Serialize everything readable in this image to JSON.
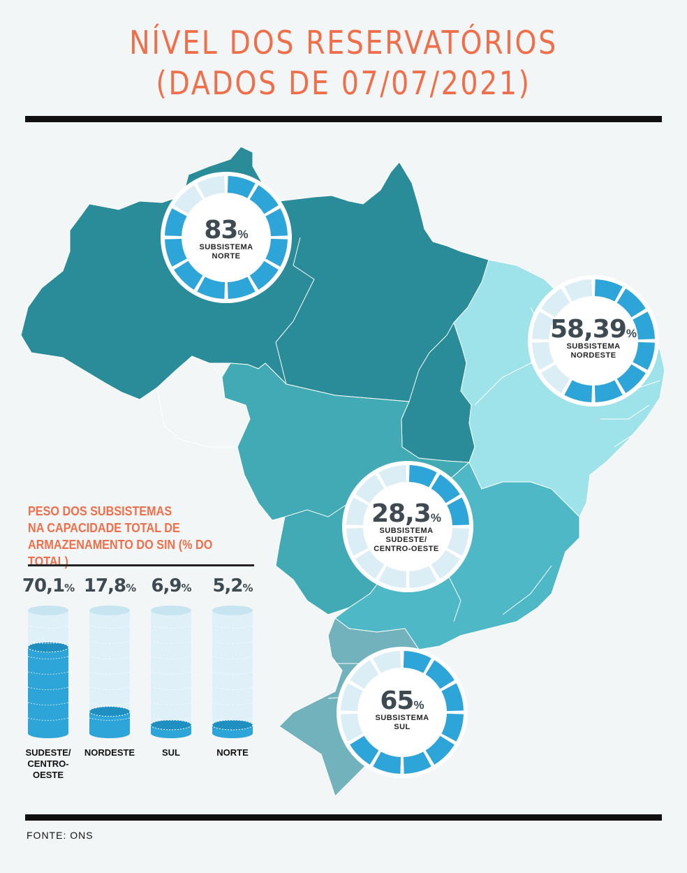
{
  "title": {
    "line1": "NÍVEL DOS RESERVATÓRIOS",
    "line2": "(DADOS DE 07/07/2021)"
  },
  "colors": {
    "accent": "#ef6f4a",
    "norte": "#2b8c99",
    "sudeste_centro_oeste": "#42aab4",
    "nordeste": "#9ee2ea",
    "sul": "#72b2bd",
    "minas": "#4eb8c6",
    "donut_fill": "#2ea5d8",
    "donut_empty": "#dceef5"
  },
  "reservoirs": [
    {
      "id": "norte",
      "value": 83,
      "value_label": "83",
      "unit": "%",
      "line1": "SUBSISTEMA",
      "line2": "NORTE",
      "line3": ""
    },
    {
      "id": "nordeste",
      "value": 58.39,
      "value_label": "58,39",
      "unit": "%",
      "line1": "SUBSISTEMA",
      "line2": "NORDESTE",
      "line3": ""
    },
    {
      "id": "sudeste",
      "value": 28.3,
      "value_label": "28,3",
      "unit": "%",
      "line1": "SUBSISTEMA",
      "line2": "SUDESTE/",
      "line3": "CENTRO-OESTE"
    },
    {
      "id": "sul",
      "value": 65,
      "value_label": "65",
      "unit": "%",
      "line1": "SUBSISTEMA",
      "line2": "SUL",
      "line3": ""
    }
  ],
  "legend": {
    "title": "PESO DOS SUBSISTEMAS\nNA CAPACIDADE TOTAL DE\nARMAZENAMENTO DO SIN (% DO TOTAL)"
  },
  "chart_data": {
    "type": "bar",
    "title": "PESO DOS SUBSISTEMAS NA CAPACIDADE TOTAL DE ARMAZENAMENTO DO SIN (% DO TOTAL)",
    "categories": [
      "SUDESTE/\nCENTRO-\nOESTE",
      "NORDESTE",
      "SUL",
      "NORTE"
    ],
    "values": [
      70.1,
      17.8,
      6.9,
      5.2
    ],
    "value_labels": [
      "70,1",
      "17,8",
      "6,9",
      "5,2"
    ],
    "unit": "%",
    "ylim": [
      0,
      100
    ]
  },
  "source": "FONTE: ONS"
}
